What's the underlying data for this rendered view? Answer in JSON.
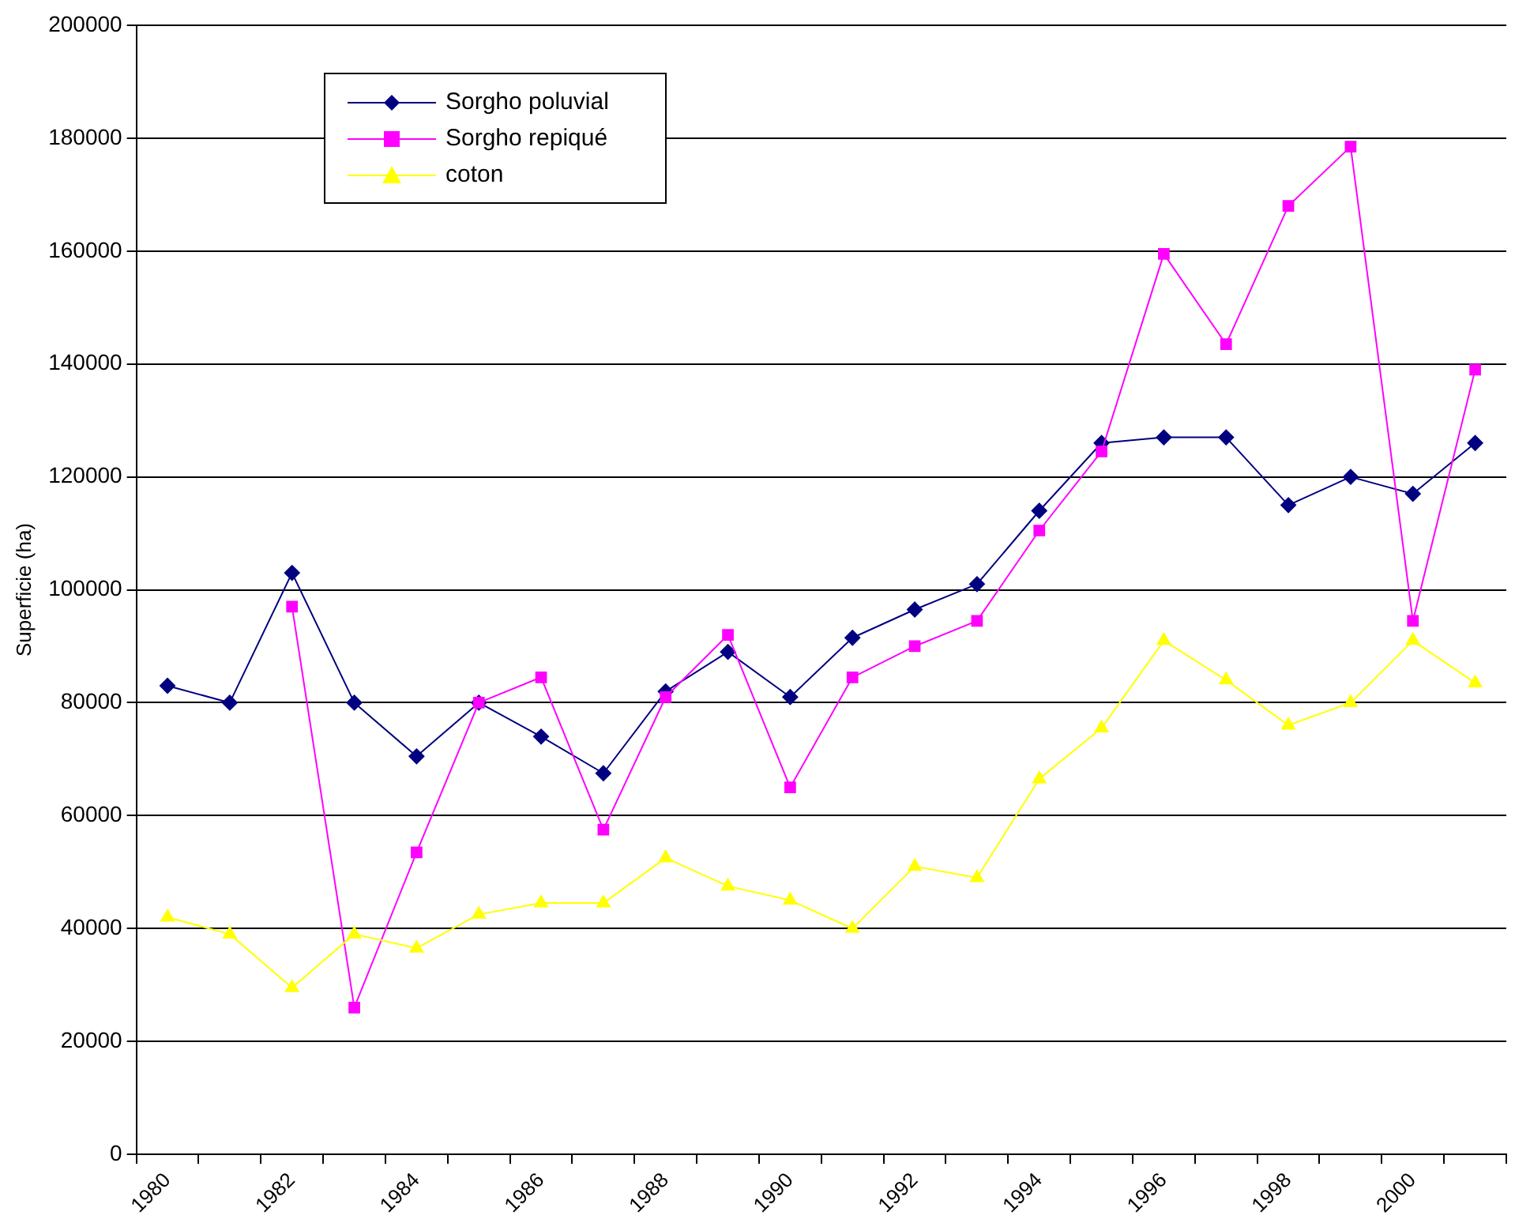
{
  "chart_data": {
    "type": "line",
    "ylabel": "Superficie (ha)",
    "categories": [
      "1980",
      null,
      "1982",
      null,
      "1984",
      null,
      "1986",
      null,
      "1988",
      null,
      "1990",
      null,
      "1992",
      null,
      "1994",
      null,
      "1996",
      null,
      "1998",
      null,
      "2000",
      null
    ],
    "series": [
      {
        "name": "Sorgho poluvial",
        "color": "#000080",
        "marker": "diamond",
        "values": [
          83000,
          80000,
          103000,
          80000,
          70500,
          80000,
          74000,
          67500,
          82000,
          89000,
          81000,
          91500,
          96500,
          101000,
          114000,
          126000,
          127000,
          127000,
          115000,
          120000,
          117000,
          126000
        ]
      },
      {
        "name": "Sorgho repiqué",
        "color": "#ff00ff",
        "marker": "square",
        "values": [
          null,
          null,
          97000,
          26000,
          53500,
          80000,
          84500,
          57500,
          81000,
          92000,
          65000,
          84500,
          90000,
          94500,
          110500,
          124500,
          159500,
          143500,
          168000,
          178500,
          94500,
          139000
        ]
      },
      {
        "name": "coton",
        "color": "#ffff00",
        "marker": "triangle",
        "values": [
          42000,
          39000,
          29500,
          39000,
          36500,
          42500,
          44500,
          44500,
          52500,
          47500,
          45000,
          40000,
          51000,
          49000,
          66500,
          75500,
          91000,
          84000,
          76000,
          80000,
          91000,
          83500
        ]
      }
    ],
    "ylim": [
      0,
      200000
    ],
    "yticks": [
      0,
      20000,
      40000,
      60000,
      80000,
      100000,
      120000,
      140000,
      160000,
      180000,
      200000
    ],
    "grid": "y",
    "legend": "top left",
    "line_style": "solid"
  }
}
